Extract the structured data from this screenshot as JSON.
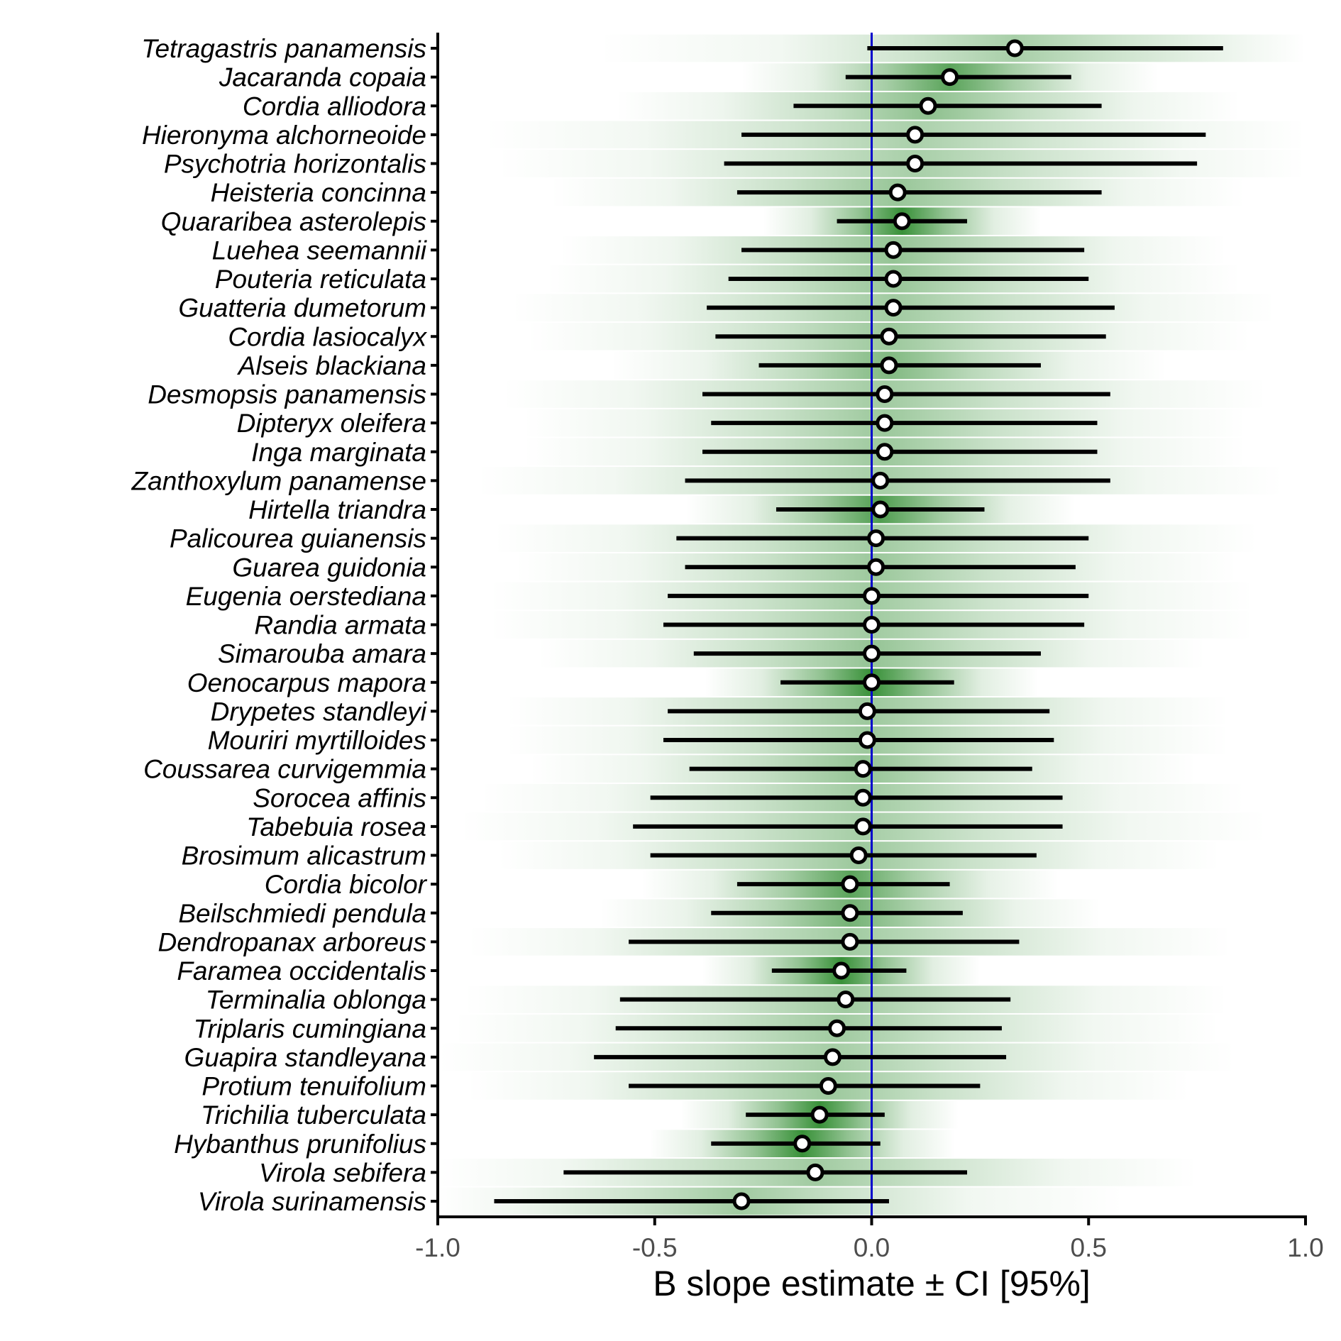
{
  "chart_data": {
    "type": "forest",
    "title": "",
    "xlabel": "B slope estimate ± CI [95%]",
    "ylabel": "",
    "xlim": [
      -1.0,
      1.0
    ],
    "x_ticks": [
      "-1.0",
      "-0.5",
      "0.0",
      "0.5",
      "1.0"
    ],
    "reference_line": 0.0,
    "grid": false,
    "colors": {
      "reference_line": "#0000cc",
      "density": "#2e8b2e",
      "interval": "#000000",
      "point_fill": "#ffffff"
    },
    "species": [
      {
        "name": "Tetragastris panamensis",
        "estimate": 0.33,
        "lower": -0.01,
        "upper": 0.81,
        "spread": 0.6
      },
      {
        "name": "Jacaranda copaia",
        "estimate": 0.18,
        "lower": -0.06,
        "upper": 0.46,
        "spread": 0.3
      },
      {
        "name": "Cordia alliodora",
        "estimate": 0.13,
        "lower": -0.18,
        "upper": 0.53,
        "spread": 0.45
      },
      {
        "name": "Hieronyma alchorneoide",
        "estimate": 0.1,
        "lower": -0.3,
        "upper": 0.77,
        "spread": 0.62
      },
      {
        "name": "Psychotria horizontalis",
        "estimate": 0.1,
        "lower": -0.34,
        "upper": 0.75,
        "spread": 0.6
      },
      {
        "name": "Heisteria concinna",
        "estimate": 0.06,
        "lower": -0.31,
        "upper": 0.53,
        "spread": 0.5
      },
      {
        "name": "Quararibea asterolepis",
        "estimate": 0.07,
        "lower": -0.08,
        "upper": 0.22,
        "spread": 0.2
      },
      {
        "name": "Luehea seemannii",
        "estimate": 0.05,
        "lower": -0.3,
        "upper": 0.49,
        "spread": 0.48
      },
      {
        "name": "Pouteria reticulata",
        "estimate": 0.05,
        "lower": -0.33,
        "upper": 0.5,
        "spread": 0.5
      },
      {
        "name": "Guatteria dumetorum",
        "estimate": 0.05,
        "lower": -0.38,
        "upper": 0.56,
        "spread": 0.55
      },
      {
        "name": "Cordia lasiocalyx",
        "estimate": 0.04,
        "lower": -0.36,
        "upper": 0.54,
        "spread": 0.52
      },
      {
        "name": "Alseis blackiana",
        "estimate": 0.04,
        "lower": -0.26,
        "upper": 0.39,
        "spread": 0.4
      },
      {
        "name": "Desmopsis panamensis",
        "estimate": 0.03,
        "lower": -0.39,
        "upper": 0.55,
        "spread": 0.55
      },
      {
        "name": "Dipteryx oleifera",
        "estimate": 0.03,
        "lower": -0.37,
        "upper": 0.52,
        "spread": 0.52
      },
      {
        "name": "Inga marginata",
        "estimate": 0.03,
        "lower": -0.39,
        "upper": 0.52,
        "spread": 0.52
      },
      {
        "name": "Zanthoxylum panamense",
        "estimate": 0.02,
        "lower": -0.43,
        "upper": 0.55,
        "spread": 0.58
      },
      {
        "name": "Hirtella triandra",
        "estimate": 0.02,
        "lower": -0.22,
        "upper": 0.26,
        "spread": 0.28
      },
      {
        "name": "Palicourea guianensis",
        "estimate": 0.01,
        "lower": -0.45,
        "upper": 0.5,
        "spread": 0.55
      },
      {
        "name": "Guarea guidonia",
        "estimate": 0.01,
        "lower": -0.43,
        "upper": 0.47,
        "spread": 0.52
      },
      {
        "name": "Eugenia oerstediana",
        "estimate": 0.0,
        "lower": -0.47,
        "upper": 0.5,
        "spread": 0.55
      },
      {
        "name": "Randia armata",
        "estimate": 0.0,
        "lower": -0.48,
        "upper": 0.49,
        "spread": 0.55
      },
      {
        "name": "Simarouba amara",
        "estimate": 0.0,
        "lower": -0.41,
        "upper": 0.39,
        "spread": 0.48
      },
      {
        "name": "Oenocarpus mapora",
        "estimate": 0.0,
        "lower": -0.21,
        "upper": 0.19,
        "spread": 0.24
      },
      {
        "name": "Drypetes standleyi",
        "estimate": -0.01,
        "lower": -0.47,
        "upper": 0.41,
        "spread": 0.52
      },
      {
        "name": "Mouriri myrtilloides",
        "estimate": -0.01,
        "lower": -0.48,
        "upper": 0.42,
        "spread": 0.52
      },
      {
        "name": "Coussarea curvigemmia",
        "estimate": -0.02,
        "lower": -0.42,
        "upper": 0.37,
        "spread": 0.48
      },
      {
        "name": "Sorocea affinis",
        "estimate": -0.02,
        "lower": -0.51,
        "upper": 0.44,
        "spread": 0.55
      },
      {
        "name": "Tabebuia rosea",
        "estimate": -0.02,
        "lower": -0.55,
        "upper": 0.44,
        "spread": 0.58
      },
      {
        "name": "Brosimum alicastrum",
        "estimate": -0.03,
        "lower": -0.51,
        "upper": 0.38,
        "spread": 0.52
      },
      {
        "name": "Cordia bicolor",
        "estimate": -0.05,
        "lower": -0.31,
        "upper": 0.18,
        "spread": 0.3
      },
      {
        "name": "Beilschmiedi pendula",
        "estimate": -0.05,
        "lower": -0.37,
        "upper": 0.21,
        "spread": 0.36
      },
      {
        "name": "Dendropanax arboreus",
        "estimate": -0.05,
        "lower": -0.56,
        "upper": 0.34,
        "spread": 0.55
      },
      {
        "name": "Faramea occidentalis",
        "estimate": -0.07,
        "lower": -0.23,
        "upper": 0.08,
        "spread": 0.2
      },
      {
        "name": "Terminalia oblonga",
        "estimate": -0.06,
        "lower": -0.58,
        "upper": 0.32,
        "spread": 0.55
      },
      {
        "name": "Triplaris cumingiana",
        "estimate": -0.08,
        "lower": -0.59,
        "upper": 0.3,
        "spread": 0.55
      },
      {
        "name": "Guapira standleyana",
        "estimate": -0.09,
        "lower": -0.64,
        "upper": 0.31,
        "spread": 0.58
      },
      {
        "name": "Protium tenuifolium",
        "estimate": -0.1,
        "lower": -0.56,
        "upper": 0.25,
        "spread": 0.52
      },
      {
        "name": "Trichilia tuberculata",
        "estimate": -0.12,
        "lower": -0.29,
        "upper": 0.03,
        "spread": 0.2
      },
      {
        "name": "Hybanthus prunifolius",
        "estimate": -0.16,
        "lower": -0.37,
        "upper": 0.02,
        "spread": 0.22
      },
      {
        "name": "Virola sebifera",
        "estimate": -0.13,
        "lower": -0.71,
        "upper": 0.22,
        "spread": 0.55
      },
      {
        "name": "Virola surinamensis",
        "estimate": -0.3,
        "lower": -0.87,
        "upper": 0.04,
        "spread": 0.55
      }
    ]
  }
}
